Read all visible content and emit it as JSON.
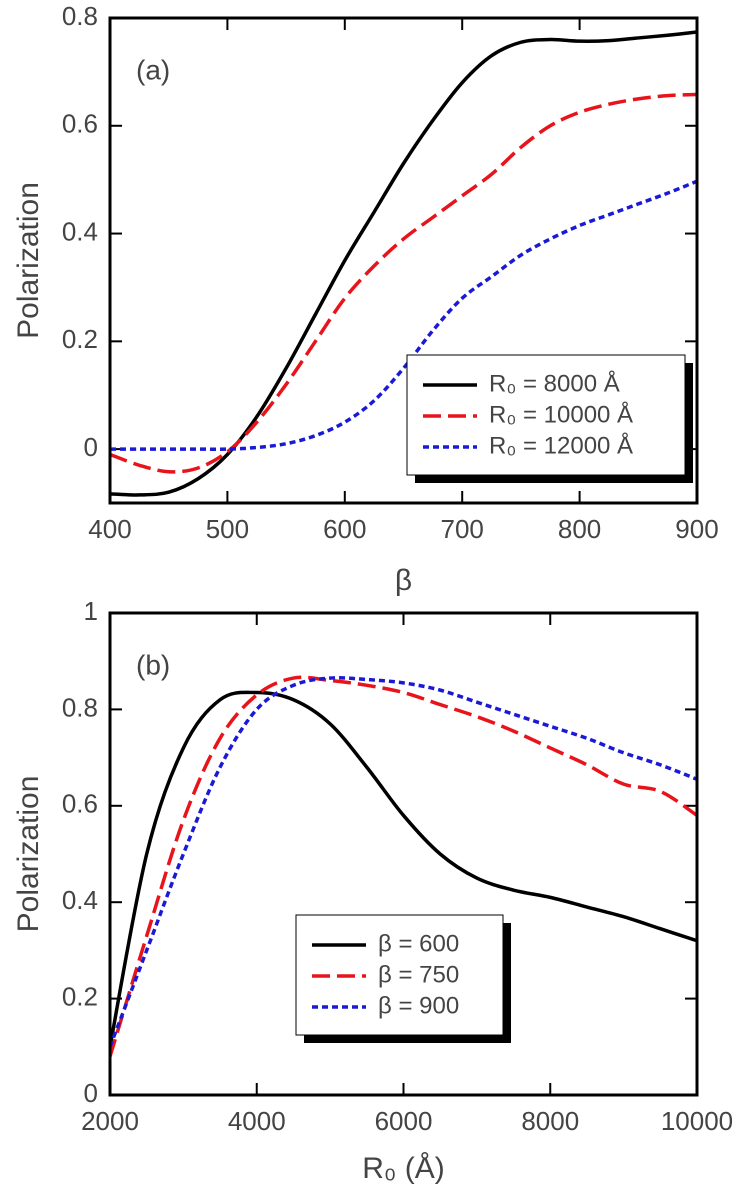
{
  "chart_data": [
    {
      "type": "line",
      "annotation": "(a)",
      "xlabel": "β",
      "ylabel": "Polarization",
      "xlim": [
        400,
        900
      ],
      "xticks": [
        400,
        500,
        600,
        700,
        800,
        900
      ],
      "ylim": [
        -0.1,
        0.8
      ],
      "yticks": [
        0,
        0.2,
        0.4,
        0.6,
        0.8
      ],
      "legend": "lower right",
      "x": [
        400,
        425,
        450,
        475,
        500,
        525,
        550,
        575,
        600,
        625,
        650,
        675,
        700,
        725,
        750,
        775,
        800,
        825,
        850,
        875,
        900
      ],
      "series": [
        {
          "name": "R₀ = 8000 Å",
          "color": "#000000",
          "linestyle": "solid",
          "values": [
            -0.083,
            -0.085,
            -0.08,
            -0.055,
            -0.01,
            0.06,
            0.15,
            0.25,
            0.35,
            0.44,
            0.53,
            0.61,
            0.68,
            0.73,
            0.755,
            0.76,
            0.757,
            0.758,
            0.763,
            0.768,
            0.774
          ]
        },
        {
          "name": "R₀ = 10000 Å",
          "color": "#e8141b",
          "linestyle": "dashed",
          "values": [
            -0.01,
            -0.03,
            -0.042,
            -0.035,
            -0.005,
            0.05,
            0.12,
            0.2,
            0.28,
            0.34,
            0.39,
            0.43,
            0.47,
            0.51,
            0.56,
            0.6,
            0.625,
            0.64,
            0.65,
            0.656,
            0.658
          ]
        },
        {
          "name": "R₀ = 12000 Å",
          "color": "#1a1ad6",
          "linestyle": "dotted",
          "values": [
            0,
            0,
            0,
            0,
            0,
            0.003,
            0.01,
            0.025,
            0.05,
            0.09,
            0.15,
            0.22,
            0.28,
            0.32,
            0.36,
            0.39,
            0.415,
            0.435,
            0.455,
            0.475,
            0.497
          ]
        }
      ]
    },
    {
      "type": "line",
      "annotation": "(b)",
      "xlabel": "R₀ (Å)",
      "ylabel": "Polarization",
      "xlim": [
        2000,
        10000
      ],
      "xticks": [
        2000,
        4000,
        6000,
        8000,
        10000
      ],
      "ylim": [
        0,
        1
      ],
      "yticks": [
        0,
        0.2,
        0.4,
        0.6,
        0.8,
        1
      ],
      "legend": "lower center",
      "x": [
        2000,
        2500,
        3000,
        3500,
        4000,
        4500,
        5000,
        5500,
        6000,
        6500,
        7000,
        7500,
        8000,
        8500,
        9000,
        9500,
        10000
      ],
      "series": [
        {
          "name": "β = 600",
          "color": "#000000",
          "linestyle": "solid",
          "values": [
            0.1,
            0.5,
            0.72,
            0.82,
            0.835,
            0.82,
            0.77,
            0.68,
            0.58,
            0.5,
            0.45,
            0.425,
            0.41,
            0.39,
            0.37,
            0.345,
            0.32
          ]
        },
        {
          "name": "β = 750",
          "color": "#e8141b",
          "linestyle": "dashed",
          "values": [
            0.08,
            0.33,
            0.57,
            0.74,
            0.83,
            0.865,
            0.86,
            0.85,
            0.835,
            0.81,
            0.785,
            0.755,
            0.72,
            0.685,
            0.645,
            0.63,
            0.58
          ]
        },
        {
          "name": "β = 900",
          "color": "#1a1ad6",
          "linestyle": "dotted",
          "values": [
            0.1,
            0.3,
            0.5,
            0.68,
            0.8,
            0.85,
            0.865,
            0.862,
            0.855,
            0.84,
            0.815,
            0.79,
            0.765,
            0.74,
            0.71,
            0.685,
            0.655
          ]
        }
      ]
    }
  ]
}
